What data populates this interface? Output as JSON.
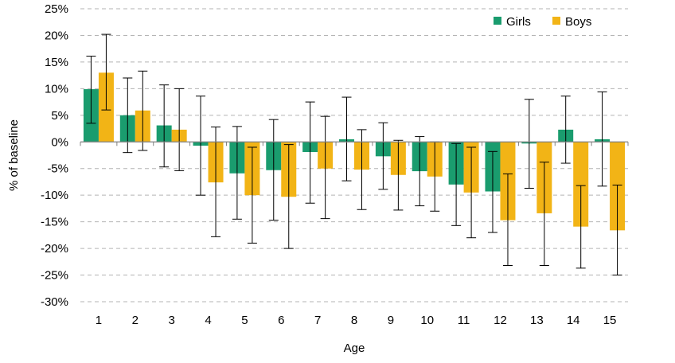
{
  "chart_data": {
    "type": "bar",
    "title": "",
    "xlabel": "Age",
    "ylabel": "% of baseline",
    "ylim": [
      -30,
      25
    ],
    "ytick_step": 5,
    "ytick_suffix": "%",
    "grid": "horizontal dashed",
    "legend_position": "top-right",
    "error_bars": true,
    "categories": [
      "1",
      "2",
      "3",
      "4",
      "5",
      "6",
      "7",
      "8",
      "9",
      "10",
      "11",
      "12",
      "13",
      "14",
      "15"
    ],
    "series": [
      {
        "name": "Girls",
        "color": "#1a9c6e",
        "values": [
          9.9,
          5.0,
          3.1,
          -0.7,
          -5.9,
          -5.3,
          -1.9,
          0.5,
          -2.7,
          -5.5,
          -8.0,
          -9.3,
          -0.3,
          2.3,
          0.5
        ],
        "error_low": [
          3.5,
          -2.0,
          -4.7,
          -10.0,
          -14.5,
          -14.7,
          -11.5,
          -7.3,
          -8.9,
          -12.0,
          -15.7,
          -17.0,
          -8.7,
          -4.0,
          -8.3
        ],
        "error_high": [
          16.1,
          12.0,
          10.7,
          8.6,
          2.9,
          4.2,
          7.5,
          8.4,
          3.6,
          1.0,
          -0.3,
          -1.8,
          8.0,
          8.6,
          9.4
        ]
      },
      {
        "name": "Boys",
        "color": "#f2b416",
        "values": [
          13.0,
          5.9,
          2.3,
          -7.6,
          -10.0,
          -10.3,
          -5.0,
          -5.2,
          -6.2,
          -6.5,
          -9.5,
          -14.7,
          -13.4,
          -15.9,
          -16.6
        ],
        "error_low": [
          6.0,
          -1.6,
          -5.4,
          -17.8,
          -19.0,
          -20.0,
          -14.4,
          -12.7,
          -12.8,
          -13.0,
          -18.0,
          -23.2,
          -23.2,
          -23.7,
          -25.0
        ],
        "error_high": [
          20.2,
          13.3,
          10.0,
          2.8,
          -1.0,
          -0.5,
          4.8,
          2.3,
          0.3,
          0.0,
          -1.0,
          -6.0,
          -3.8,
          -8.2,
          -8.1
        ]
      }
    ]
  }
}
